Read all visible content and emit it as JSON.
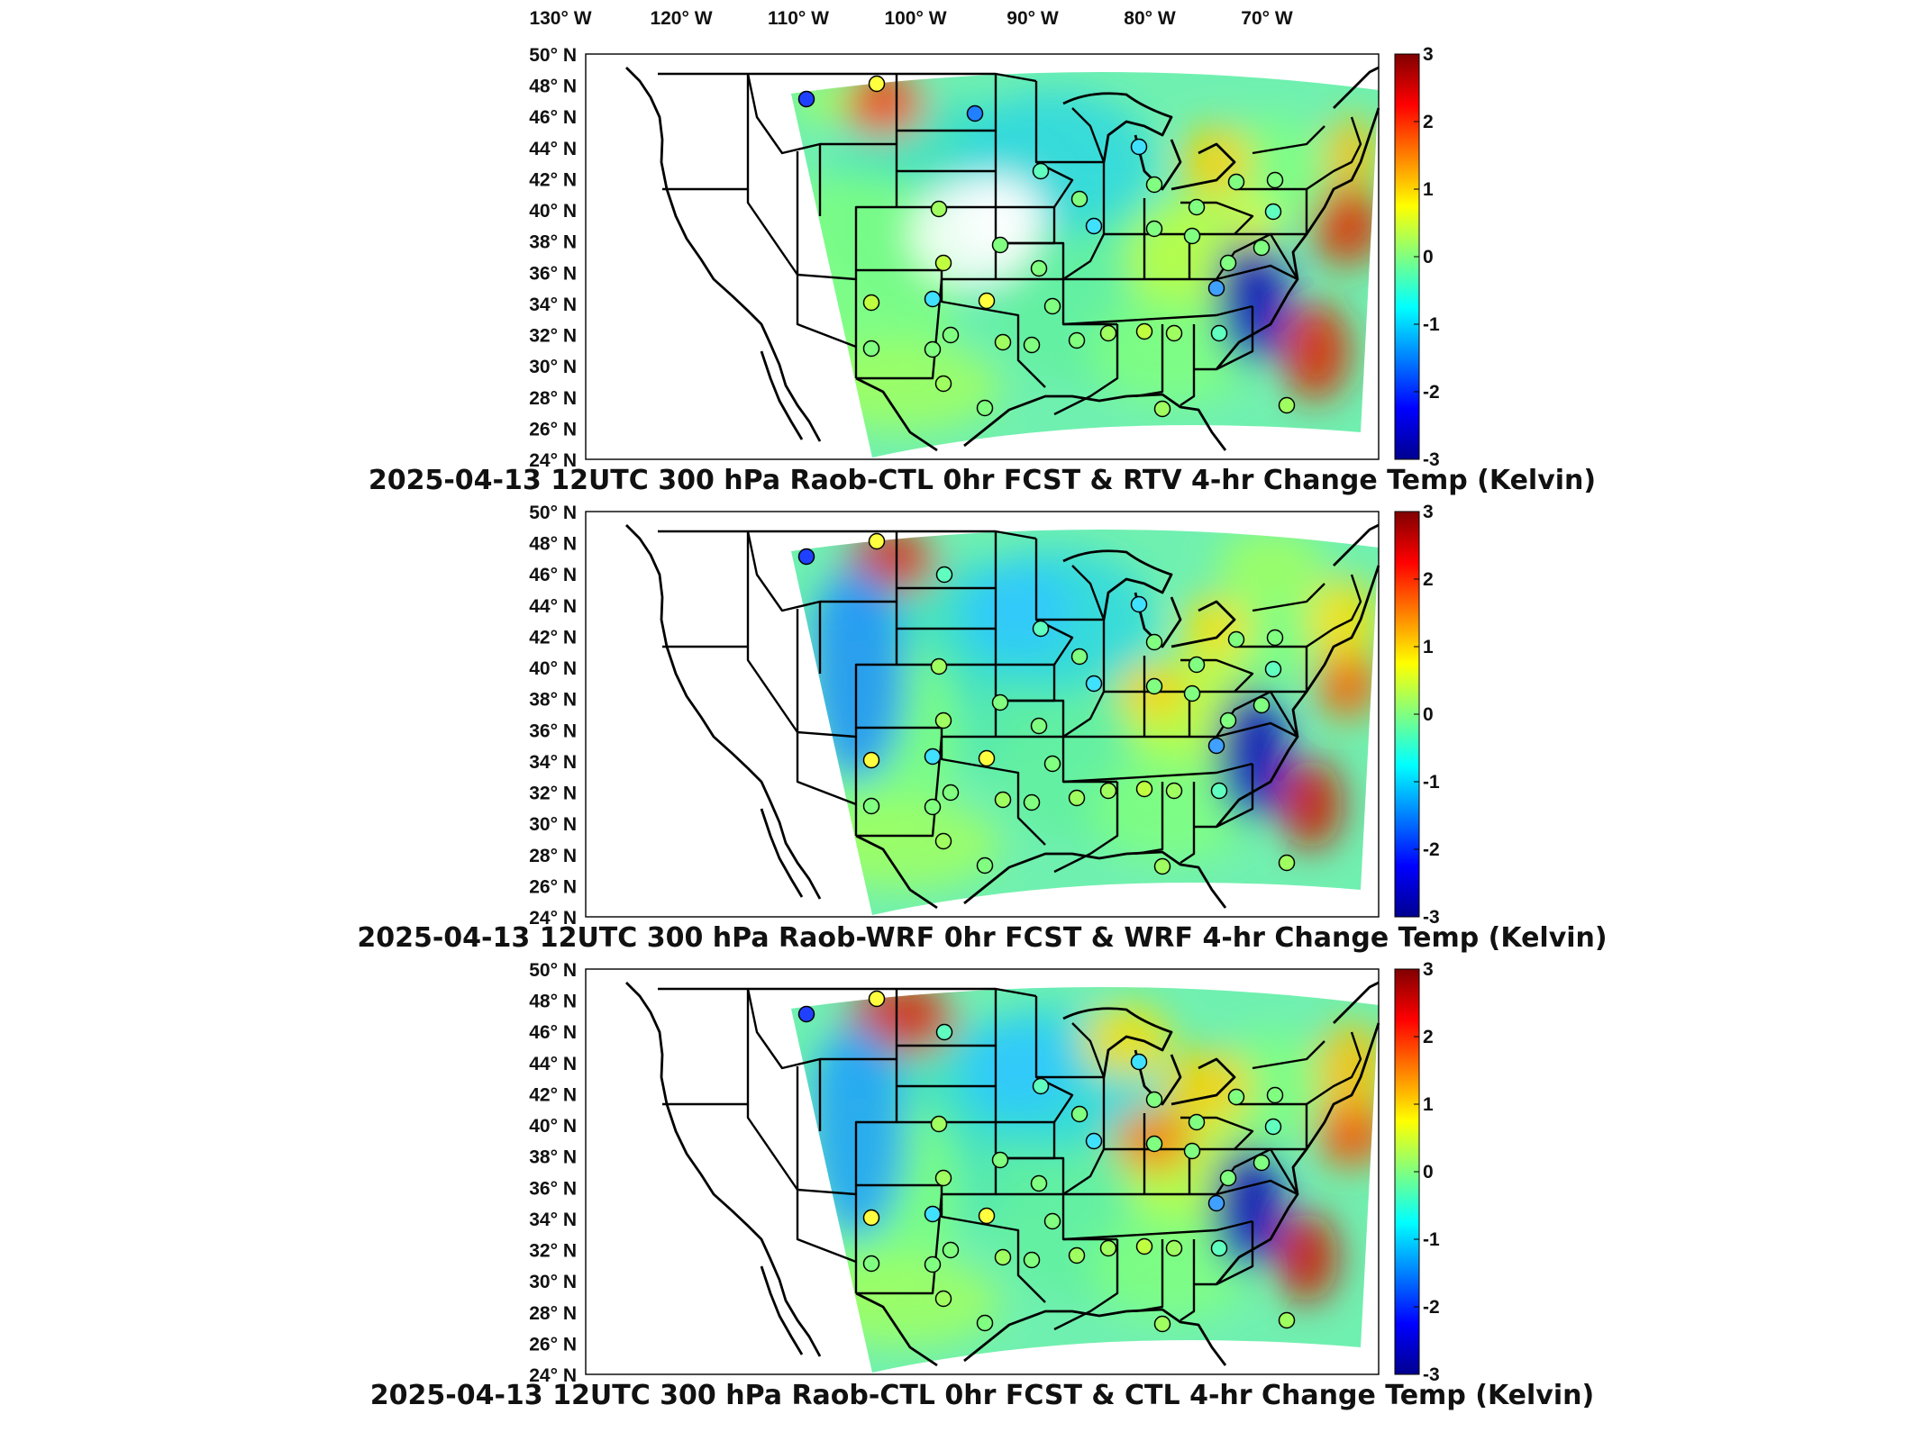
{
  "colorbar": {
    "ticks": [
      "3",
      "2",
      "1",
      "0",
      "-1",
      "-2",
      "-3"
    ],
    "colors": [
      "#00008f",
      "#0000ff",
      "#0080ff",
      "#00ffff",
      "#80ff80",
      "#ffff00",
      "#ff8000",
      "#ff0000",
      "#800000"
    ]
  },
  "lon_labels": [
    "130° W",
    "120° W",
    "110° W",
    "100° W",
    "90° W",
    "80° W",
    "70° W"
  ],
  "lat_labels": [
    "50° N",
    "48° N",
    "46° N",
    "44° N",
    "42° N",
    "40° N",
    "38° N",
    "36° N",
    "34° N",
    "32° N",
    "30° N",
    "28° N",
    "26° N",
    "24° N"
  ],
  "panels": [
    {
      "title": "2025-04-13 12UTC 300 hPa Raob-CTL 0hr FCST & RTV 4-hr Change Temp (Kelvin)"
    },
    {
      "title": "2025-04-13 12UTC 300 hPa Raob-WRF 0hr FCST & WRF 4-hr Change Temp (Kelvin)"
    },
    {
      "title": "2025-04-13 12UTC 300 hPa Raob-CTL 0hr FCST & CTL 4-hr Change Temp (Kelvin)"
    }
  ]
}
